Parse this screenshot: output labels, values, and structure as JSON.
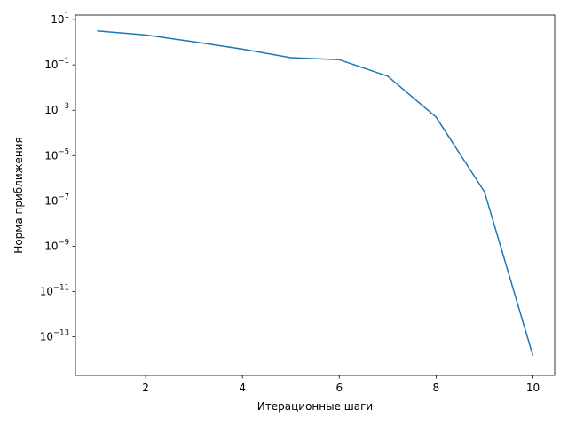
{
  "chart_data": {
    "type": "line",
    "title": "",
    "xlabel": "Итерационные шаги",
    "ylabel": "Норма приближения",
    "xlim": [
      0.55,
      10.45
    ],
    "ylim_log10": [
      -14.7,
      1.2
    ],
    "yscale": "log",
    "grid": false,
    "legend": "none",
    "x_ticks": [
      2,
      4,
      6,
      8,
      10
    ],
    "y_tick_exponents": [
      1,
      -1,
      -3,
      -5,
      -7,
      -9,
      -11,
      -13
    ],
    "y_tick_base": "10",
    "line_color": "#1f77b4",
    "series": [
      {
        "x": [
          1,
          2,
          3,
          4,
          5,
          6,
          7,
          8,
          9,
          10
        ],
        "y": [
          3.2,
          2.1,
          1.05,
          0.5,
          0.21,
          0.17,
          0.032,
          0.0005,
          2.5e-07,
          1.5e-14
        ]
      }
    ]
  }
}
